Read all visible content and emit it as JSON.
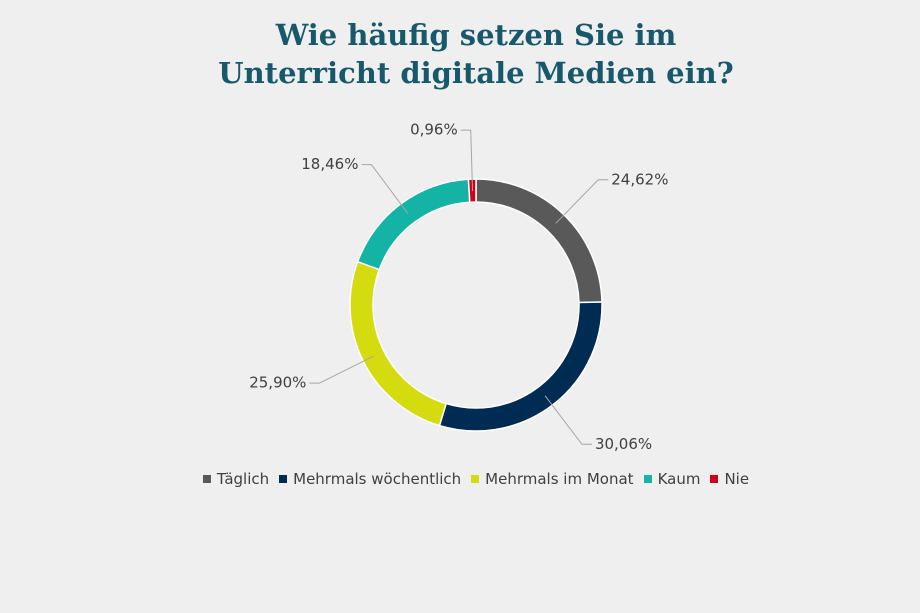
{
  "chart_data": {
    "type": "donut",
    "title": "Wie häufig setzen Sie im Unterricht digitale Medien ein?",
    "categories": [
      "Täglich",
      "Mehrmals wöchentlich",
      "Mehrmals im Monat",
      "Kaum",
      "Nie"
    ],
    "values": [
      24.62,
      30.06,
      25.9,
      18.46,
      0.96
    ],
    "value_labels": [
      "24,62%",
      "30,06%",
      "25,90%",
      "18,46%",
      "0,96%"
    ],
    "colors": [
      "#595959",
      "#002b52",
      "#d4dc0f",
      "#13b3a6",
      "#d0021b"
    ]
  }
}
